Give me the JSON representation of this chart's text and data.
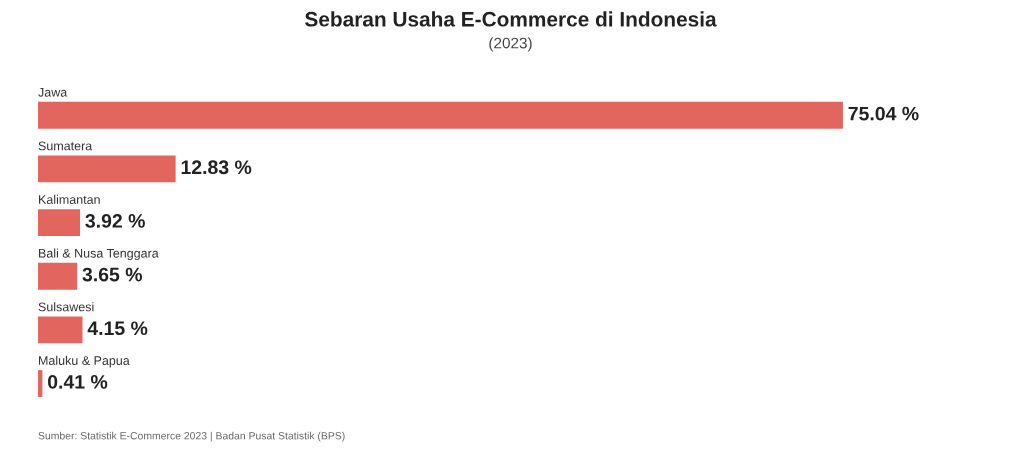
{
  "chart_data": {
    "type": "bar",
    "orientation": "horizontal",
    "title": "Sebaran Usaha E-Commerce di Indonesia",
    "subtitle": "(2023)",
    "categories": [
      "Jawa",
      "Sumatera",
      "Kalimantan",
      "Bali & Nusa Tenggara",
      "Sulsawesi",
      "Maluku & Papua"
    ],
    "values": [
      75.04,
      12.83,
      3.92,
      3.65,
      4.15,
      0.41
    ],
    "value_labels": [
      "75.04 %",
      "12.83 %",
      "3.92 %",
      "3.65 %",
      "4.15 %",
      "0.41 %"
    ],
    "color": "#e3665e",
    "annotations": [
      "Sumber: Statistik E-Commerce 2023 | Badan Pusat Statistik (BPS)"
    ]
  }
}
